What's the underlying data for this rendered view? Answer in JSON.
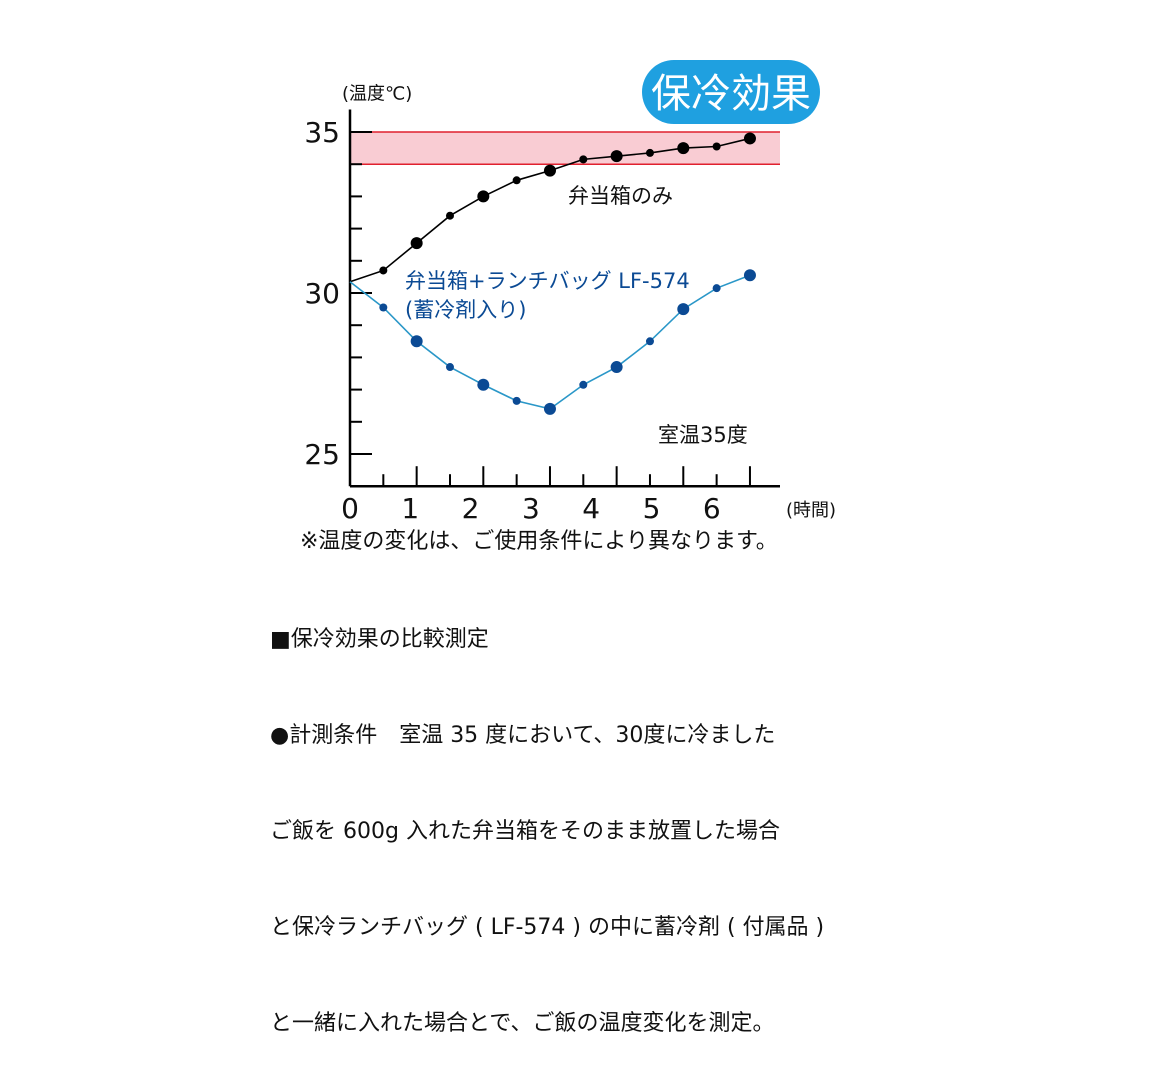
{
  "chart_data": {
    "type": "line",
    "title": "保冷効果",
    "ylabel": "(温度℃)",
    "xlabel": "(時間)",
    "ylim": [
      24,
      35.7
    ],
    "xlim": [
      0,
      7.2
    ],
    "yticks": [
      25,
      30,
      35
    ],
    "xtick_labels": [
      "0",
      "1",
      "2",
      "3",
      "4",
      "5",
      "6"
    ],
    "band": {
      "from": 34,
      "to": 35,
      "fill": "#f9ccd3",
      "line": "#e0202e"
    },
    "annotation": "室温35度",
    "series": [
      {
        "name": "弁当箱のみ",
        "color": "#000000",
        "x": [
          0,
          0.55,
          1.1,
          1.65,
          2.2,
          2.75,
          3.3,
          3.85,
          4.4,
          4.95,
          5.5,
          6.05,
          6.6
        ],
        "y": [
          30.35,
          30.7,
          31.55,
          32.4,
          33.0,
          33.5,
          33.8,
          34.15,
          34.25,
          34.35,
          34.5,
          34.55,
          34.8
        ]
      },
      {
        "name": "弁当箱+ランチバッグ LF-574",
        "name_line2": "(蓄冷剤入り)",
        "color": "#0b4a94",
        "line_color": "#2a97c8",
        "x": [
          0,
          0.55,
          1.1,
          1.65,
          2.2,
          2.75,
          3.3,
          3.85,
          4.4,
          4.95,
          5.5,
          6.05,
          6.6
        ],
        "y": [
          30.35,
          29.55,
          28.5,
          27.7,
          27.15,
          26.65,
          26.4,
          27.15,
          27.7,
          28.5,
          29.5,
          30.15,
          30.55
        ]
      }
    ]
  },
  "badge_color": "#1fa0e0",
  "footnote": "※温度の変化は、ご使用条件により異なります。",
  "notes": [
    "■保冷効果の比較測定",
    "●計測条件　室温 35 度において、30度に冷ました",
    "ご飯を 600g 入れた弁当箱をそのまま放置した場合",
    "と保冷ランチバッグ ( LF-574 ) の中に蓄冷剤 ( 付属品 )",
    "と一緒に入れた場合とで、ご飯の温度変化を測定。"
  ]
}
